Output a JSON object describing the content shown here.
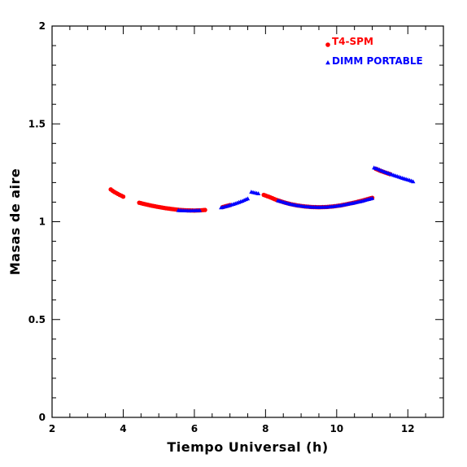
{
  "chart_data": {
    "type": "scatter",
    "title": "",
    "xlabel": "Tiempo Universal (h)",
    "ylabel": "Masas de aire",
    "xlim": [
      2,
      13
    ],
    "ylim": [
      0,
      2
    ],
    "x_ticks": [
      2,
      4,
      6,
      8,
      10,
      12
    ],
    "x_tick_labels": [
      "2",
      "4",
      "6",
      "8",
      "10",
      "12"
    ],
    "y_ticks": [
      0,
      0.5,
      1,
      1.5,
      2
    ],
    "y_tick_labels": [
      "0",
      "0.5",
      "1",
      "1.5",
      "2"
    ],
    "grid": false,
    "legend_position": "top-right",
    "series": [
      {
        "name": "T4-SPM",
        "marker": "circle",
        "color": "#ff0000",
        "segments": [
          [
            [
              3.65,
              1.165
            ],
            [
              3.7,
              1.158
            ],
            [
              3.75,
              1.152
            ],
            [
              3.8,
              1.147
            ],
            [
              3.85,
              1.142
            ],
            [
              3.9,
              1.137
            ],
            [
              3.95,
              1.133
            ],
            [
              4.0,
              1.128
            ]
          ],
          [
            [
              4.45,
              1.097
            ],
            [
              4.6,
              1.09
            ],
            [
              4.8,
              1.082
            ],
            [
              5.0,
              1.075
            ],
            [
              5.2,
              1.069
            ],
            [
              5.4,
              1.064
            ],
            [
              5.6,
              1.06
            ],
            [
              5.8,
              1.058
            ],
            [
              6.0,
              1.057
            ],
            [
              6.15,
              1.058
            ],
            [
              6.3,
              1.06
            ]
          ],
          [
            [
              6.8,
              1.075
            ],
            [
              6.9,
              1.08
            ],
            [
              7.0,
              1.085
            ]
          ],
          [
            [
              7.95,
              1.137
            ],
            [
              8.1,
              1.127
            ],
            [
              8.3,
              1.112
            ],
            [
              8.5,
              1.1
            ],
            [
              8.7,
              1.09
            ],
            [
              8.9,
              1.083
            ],
            [
              9.1,
              1.078
            ],
            [
              9.3,
              1.075
            ],
            [
              9.5,
              1.074
            ],
            [
              9.7,
              1.075
            ],
            [
              9.9,
              1.078
            ],
            [
              10.1,
              1.083
            ],
            [
              10.3,
              1.09
            ],
            [
              10.5,
              1.098
            ],
            [
              10.7,
              1.107
            ],
            [
              10.9,
              1.117
            ],
            [
              11.0,
              1.122
            ]
          ],
          [
            [
              11.1,
              1.27
            ],
            [
              11.2,
              1.262
            ],
            [
              11.35,
              1.252
            ],
            [
              11.5,
              1.243
            ]
          ]
        ]
      },
      {
        "name": "DIMM PORTABLE",
        "marker": "triangle",
        "color": "#0000ff",
        "segments": [
          [
            [
              5.55,
              1.058
            ],
            [
              5.7,
              1.057
            ],
            [
              5.85,
              1.056
            ],
            [
              6.0,
              1.057
            ],
            [
              6.15,
              1.058
            ]
          ],
          [
            [
              6.75,
              1.072
            ],
            [
              6.9,
              1.079
            ],
            [
              7.05,
              1.087
            ],
            [
              7.2,
              1.096
            ],
            [
              7.35,
              1.106
            ],
            [
              7.5,
              1.118
            ]
          ],
          [
            [
              7.6,
              1.152
            ],
            [
              7.7,
              1.148
            ],
            [
              7.8,
              1.144
            ]
          ],
          [
            [
              8.35,
              1.108
            ],
            [
              8.5,
              1.1
            ],
            [
              8.7,
              1.09
            ],
            [
              8.9,
              1.083
            ],
            [
              9.1,
              1.078
            ],
            [
              9.3,
              1.075
            ],
            [
              9.5,
              1.074
            ],
            [
              9.7,
              1.075
            ],
            [
              9.9,
              1.078
            ],
            [
              10.1,
              1.083
            ],
            [
              10.3,
              1.09
            ],
            [
              10.5,
              1.097
            ],
            [
              10.7,
              1.105
            ],
            [
              10.9,
              1.115
            ],
            [
              11.0,
              1.12
            ]
          ],
          [
            [
              11.05,
              1.276
            ],
            [
              11.15,
              1.27
            ],
            [
              11.3,
              1.258
            ],
            [
              11.45,
              1.248
            ],
            [
              11.6,
              1.238
            ],
            [
              11.75,
              1.229
            ],
            [
              11.9,
              1.22
            ],
            [
              12.05,
              1.212
            ],
            [
              12.15,
              1.205
            ]
          ]
        ]
      }
    ]
  }
}
